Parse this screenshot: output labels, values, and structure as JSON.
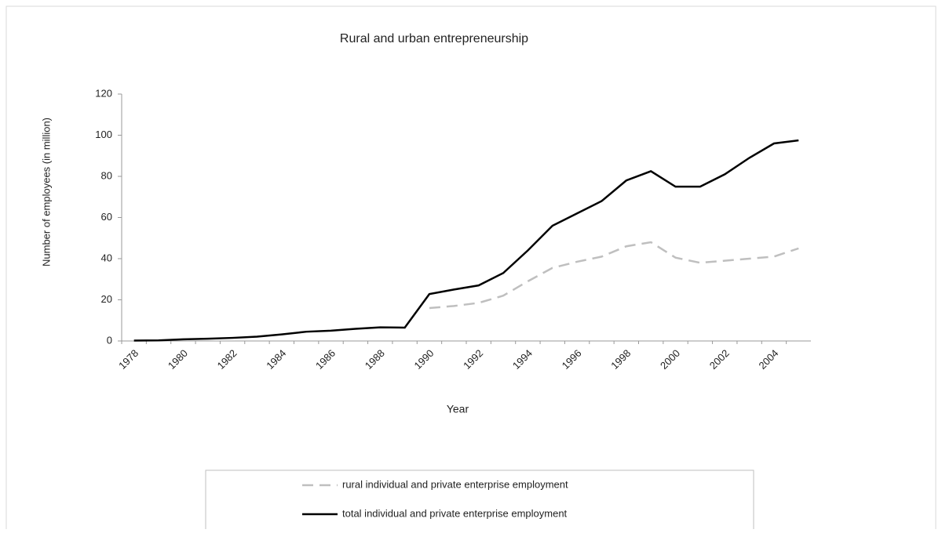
{
  "chart_data": {
    "type": "line",
    "title": "Rural and urban entrepreneurship",
    "x_label": "Year",
    "y_label": "Number of employees (in million)",
    "categories": [
      "1978",
      null,
      "1980",
      null,
      "1982",
      null,
      "1984",
      null,
      "1986",
      null,
      "1988",
      null,
      "1990",
      null,
      "1992",
      null,
      "1994",
      null,
      "1996",
      null,
      "1998",
      null,
      "2000",
      null,
      "2002",
      null,
      "2004",
      null
    ],
    "series": [
      {
        "name": "rural individual and private enterprise employment",
        "color": "#bfbfbf",
        "dashed": true,
        "values": [
          null,
          null,
          null,
          null,
          null,
          null,
          null,
          null,
          null,
          null,
          null,
          null,
          16,
          17,
          18.5,
          22,
          29,
          35.5,
          38.5,
          41,
          46,
          48,
          40.5,
          38,
          39,
          40,
          41,
          45
        ]
      },
      {
        "name": "total individual and private enterprise employment",
        "color": "#000000",
        "dashed": false,
        "values": [
          0.2,
          0.3,
          0.8,
          1.1,
          1.5,
          2.1,
          3.2,
          4.5,
          5.0,
          5.9,
          6.6,
          6.5,
          22.8,
          25,
          27,
          33,
          44,
          56,
          62,
          68,
          78,
          82.5,
          75,
          75,
          81,
          89,
          96,
          97.5
        ]
      }
    ],
    "ylim": [
      0,
      120
    ],
    "yticks": [
      0,
      20,
      40,
      60,
      80,
      100,
      120
    ],
    "grid": false,
    "legend": "bottom"
  }
}
